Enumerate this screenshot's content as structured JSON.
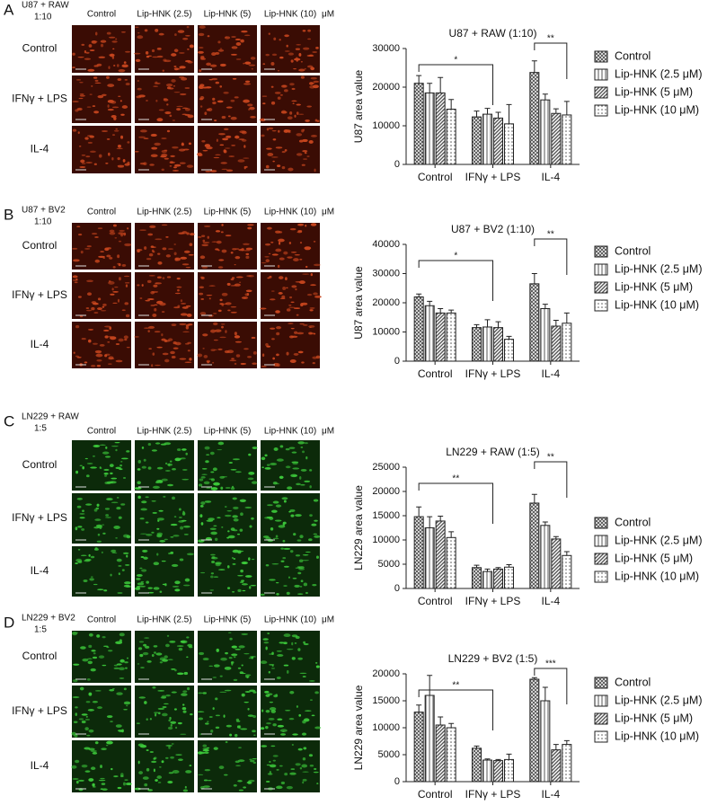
{
  "panels": [
    {
      "label": "A",
      "condition": [
        "U87 + RAW",
        "1:10"
      ],
      "columns": [
        "Control",
        "Lip-HNK (2.5)",
        "Lip-HNK (5)",
        "Lip-HNK (10)"
      ],
      "unit": "μM",
      "rows": [
        "Control",
        "IFNγ + LPS",
        "IL-4"
      ],
      "image_color": "#c8461e"
    },
    {
      "label": "B",
      "condition": [
        "U87 + BV2",
        "1:10"
      ],
      "columns": [
        "Control",
        "Lip-HNK (2.5)",
        "Lip-HNK (5)",
        "Lip-HNK (10)"
      ],
      "unit": "μM",
      "rows": [
        "Control",
        "IFNγ + LPS",
        "IL-4"
      ],
      "image_color": "#c8461e"
    },
    {
      "label": "C",
      "condition": [
        "LN229 + RAW",
        "1:5"
      ],
      "columns": [
        "Control",
        "Lip-HNK (2.5)",
        "Lip-HNK (5)",
        "Lip-HNK (10)"
      ],
      "unit": "μM",
      "rows": [
        "Control",
        "IFNγ + LPS",
        "IL-4"
      ],
      "image_color": "#3cc83a"
    },
    {
      "label": "D",
      "condition": [
        "LN229 + BV2",
        "1:5"
      ],
      "columns": [
        "Control",
        "Lip-HNK (2.5)",
        "Lip-HNK (5)",
        "Lip-HNK (10)"
      ],
      "unit": "μM",
      "rows": [
        "Control",
        "IFNγ + LPS",
        "IL-4"
      ],
      "image_color": "#3cc83a"
    }
  ],
  "chart_data": [
    {
      "type": "bar",
      "title": "U87 + RAW (1:10)",
      "y_label": "U87 area value",
      "categories": [
        "Control",
        "IFNγ + LPS",
        "IL-4"
      ],
      "ylim": [
        0,
        30000
      ],
      "yticks": [
        0,
        10000,
        20000,
        30000
      ],
      "annotations": [
        "*",
        "**"
      ],
      "series": [
        {
          "name": "Control",
          "color": "#555555",
          "values": [
            21000,
            12300,
            23800
          ],
          "errors": [
            2000,
            1500,
            3000
          ]
        },
        {
          "name": "Lip-HNK (2.5 μM)",
          "color": "#555555",
          "values": [
            18500,
            13000,
            16700
          ],
          "errors": [
            2500,
            1500,
            1500
          ]
        },
        {
          "name": "Lip-HNK (5 μM)",
          "color": "#555555",
          "values": [
            18500,
            12000,
            13200
          ],
          "errors": [
            4000,
            1500,
            1200
          ]
        },
        {
          "name": "Lip-HNK (10 μM)",
          "color": "#555555",
          "values": [
            14300,
            10500,
            12800
          ],
          "errors": [
            2500,
            5000,
            3500
          ]
        }
      ]
    },
    {
      "type": "bar",
      "title": "U87 + BV2 (1:10)",
      "y_label": "U87 area value",
      "categories": [
        "Control",
        "IFNγ + LPS",
        "IL-4"
      ],
      "ylim": [
        0,
        40000
      ],
      "yticks": [
        0,
        10000,
        20000,
        30000,
        40000
      ],
      "annotations": [
        "*",
        "**"
      ],
      "series": [
        {
          "name": "Control",
          "color": "#555555",
          "values": [
            22000,
            11500,
            26500
          ],
          "errors": [
            1000,
            1000,
            3500
          ]
        },
        {
          "name": "Lip-HNK (2.5 μM)",
          "color": "#555555",
          "values": [
            19000,
            11700,
            18000
          ],
          "errors": [
            1500,
            2500,
            1500
          ]
        },
        {
          "name": "Lip-HNK (5 μM)",
          "color": "#555555",
          "values": [
            16500,
            11500,
            12000
          ],
          "errors": [
            1500,
            2000,
            2000
          ]
        },
        {
          "name": "Lip-HNK (10 μM)",
          "color": "#555555",
          "values": [
            16500,
            7500,
            13000
          ],
          "errors": [
            1000,
            1000,
            3500
          ]
        }
      ]
    },
    {
      "type": "bar",
      "title": "LN229 + RAW (1:5)",
      "y_label": "LN229 area value",
      "categories": [
        "Control",
        "IFNγ + LPS",
        "IL-4"
      ],
      "ylim": [
        0,
        25000
      ],
      "yticks": [
        0,
        5000,
        10000,
        15000,
        20000,
        25000
      ],
      "annotations": [
        "**",
        "**"
      ],
      "series": [
        {
          "name": "Control",
          "color": "#555555",
          "values": [
            14800,
            4300,
            17600
          ],
          "errors": [
            2000,
            500,
            1800
          ]
        },
        {
          "name": "Lip-HNK (2.5 μM)",
          "color": "#555555",
          "values": [
            12500,
            3500,
            13000
          ],
          "errors": [
            2300,
            500,
            700
          ]
        },
        {
          "name": "Lip-HNK (5 μM)",
          "color": "#555555",
          "values": [
            13900,
            4000,
            10200
          ],
          "errors": [
            1000,
            300,
            500
          ]
        },
        {
          "name": "Lip-HNK (10 μM)",
          "color": "#555555",
          "values": [
            10500,
            4400,
            6800
          ],
          "errors": [
            1200,
            500,
            800
          ]
        }
      ]
    },
    {
      "type": "bar",
      "title": "LN229 + BV2 (1:5)",
      "y_label": "LN229 area value",
      "categories": [
        "Control",
        "IFNγ + LPS",
        "IL-4"
      ],
      "ylim": [
        0,
        20000
      ],
      "yticks": [
        0,
        5000,
        10000,
        15000,
        20000
      ],
      "annotations": [
        "**",
        "***"
      ],
      "series": [
        {
          "name": "Control",
          "color": "#555555",
          "values": [
            12900,
            6200,
            19000
          ],
          "errors": [
            1300,
            400,
            300
          ]
        },
        {
          "name": "Lip-HNK (2.5 μM)",
          "color": "#555555",
          "values": [
            16000,
            4000,
            15000
          ],
          "errors": [
            3700,
            200,
            2500
          ]
        },
        {
          "name": "Lip-HNK (5 μM)",
          "color": "#555555",
          "values": [
            10500,
            3900,
            5900
          ],
          "errors": [
            1500,
            200,
            1000
          ]
        },
        {
          "name": "Lip-HNK (10 μM)",
          "color": "#555555",
          "values": [
            10000,
            4100,
            6900
          ],
          "errors": [
            800,
            1000,
            700
          ]
        }
      ]
    }
  ]
}
